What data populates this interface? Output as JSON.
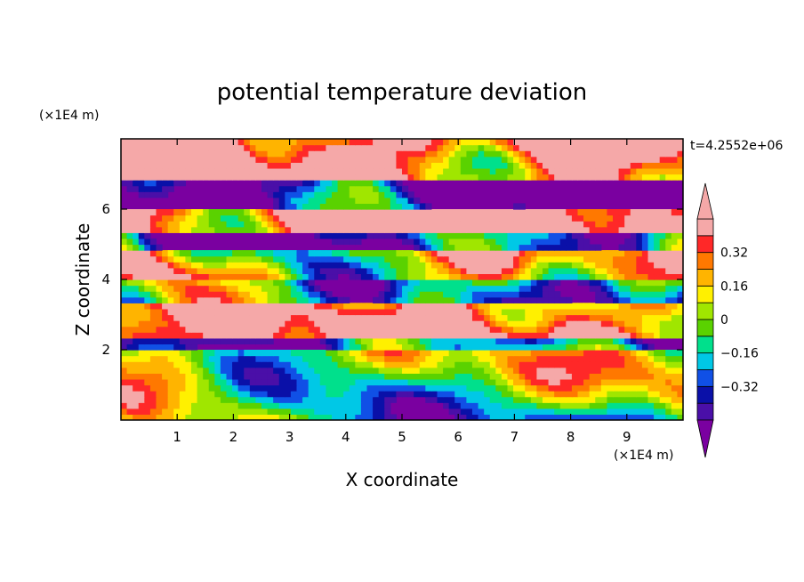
{
  "chart_data": {
    "type": "heatmap",
    "title": "potential temperature deviation",
    "xlabel": "X coordinate",
    "ylabel": "Z coordinate",
    "x_unit": "(×1E4 m)",
    "y_unit": "(×1E4 m)",
    "time_label": "t=4.2552e+06",
    "xlim": [
      0,
      10
    ],
    "ylim": [
      0,
      8
    ],
    "x_ticks": [
      1,
      2,
      3,
      4,
      5,
      6,
      7,
      8,
      9
    ],
    "y_ticks": [
      2,
      4,
      6
    ],
    "colorbar": {
      "levels": [
        -0.48,
        -0.4,
        -0.32,
        -0.24,
        -0.16,
        -0.08,
        0,
        0.08,
        0.16,
        0.24,
        0.32,
        0.4,
        0.48
      ],
      "tick_values": [
        -0.32,
        -0.16,
        0,
        0.16,
        0.32
      ],
      "tick_labels": [
        "−0.32",
        "−0.16",
        "0",
        "0.16",
        "0.32"
      ],
      "colors": [
        "#7a00a0",
        "#4a0fa8",
        "#0a10a8",
        "#1050e6",
        "#00c8e6",
        "#00e08c",
        "#5ad200",
        "#a0e600",
        "#fff000",
        "#ffb400",
        "#ff7800",
        "#ff2828",
        "#f5a8a8"
      ],
      "extend": "both"
    }
  }
}
